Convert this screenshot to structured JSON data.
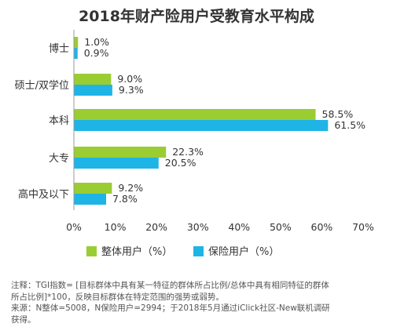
{
  "chart_data": {
    "type": "bar",
    "orientation": "horizontal",
    "title": "2018年财产险用户受教育水平构成",
    "categories": [
      "博士",
      "硕士/双学位",
      "本科",
      "大专",
      "高中及以下"
    ],
    "series": [
      {
        "name": "整体用户（%）",
        "values": [
          1.0,
          9.0,
          58.5,
          22.3,
          9.2
        ],
        "labels": [
          "1.0%",
          "9.0%",
          "58.5%",
          "22.3%",
          "9.2%"
        ],
        "color": "#9ACD32"
      },
      {
        "name": "保险用户（%）",
        "values": [
          0.9,
          9.3,
          61.5,
          20.5,
          7.8
        ],
        "labels": [
          "0.9%",
          "9.3%",
          "61.5%",
          "20.5%",
          "7.8%"
        ],
        "color": "#1EB4E6"
      }
    ],
    "xlim": [
      0,
      70
    ],
    "xticks": [
      "0%",
      "10%",
      "20%",
      "30%",
      "40%",
      "50%",
      "60%",
      "70%"
    ],
    "grid": false,
    "legend": "bottom"
  },
  "notes": [
    "注释：TGI指数= [目标群体中具有某一特征的群体所占比例/总体中具有相同特征的群体",
    "所占比例]*100，反映目标群体在特定范围的强势或弱势。",
    "来源：N整体=5008，N保险用户=2994；于2018年5月通过iClick社区-New联机调研",
    "获得。"
  ]
}
